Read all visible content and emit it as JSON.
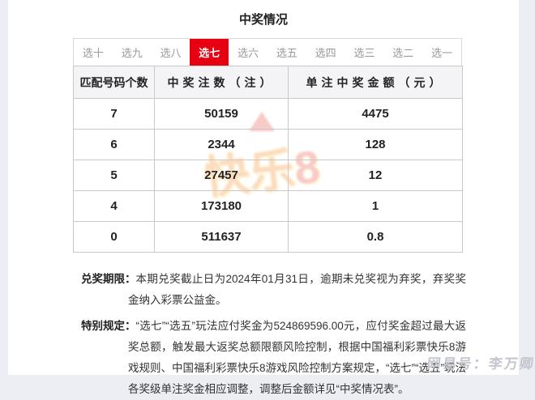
{
  "page": {
    "title": "中奖情况"
  },
  "tabs": [
    {
      "label": "选十",
      "active": false
    },
    {
      "label": "选九",
      "active": false
    },
    {
      "label": "选八",
      "active": false
    },
    {
      "label": "选七",
      "active": true
    },
    {
      "label": "选六",
      "active": false
    },
    {
      "label": "选五",
      "active": false
    },
    {
      "label": "选四",
      "active": false
    },
    {
      "label": "选三",
      "active": false
    },
    {
      "label": "选二",
      "active": false
    },
    {
      "label": "选一",
      "active": false
    }
  ],
  "table": {
    "headers": [
      "匹配号码个数",
      "中奖注数（注）",
      "单注中奖金额（元）"
    ],
    "rows": [
      [
        "7",
        "50159",
        "4475"
      ],
      [
        "6",
        "2344",
        "128"
      ],
      [
        "5",
        "27457",
        "12"
      ],
      [
        "4",
        "173180",
        "1"
      ],
      [
        "0",
        "511637",
        "0.8"
      ]
    ]
  },
  "notes": {
    "deadline_label": "兑奖期限：",
    "deadline_text": "本期兑奖截止日为2024年01月31日，逾期未兑奖视为弃奖，弃奖奖金纳入彩票公益金。",
    "special_label": "特别规定：",
    "special_text": "“选七”“选五”玩法应付奖金为524869596.00元，应付奖金超过最大返奖总额，触发最大返奖总额限额风险控制，根据中国福利彩票快乐8游戏规则、中国福利彩票快乐8游戏风险控制方案规定，“选七”“选五”玩法各奖级单注奖金相应调整，调整后金额详见“中奖情况表”。"
  },
  "watermarks": {
    "logo_text_main": "快乐",
    "logo_text_eight": "8",
    "signature": "网易号：李万卿"
  },
  "colors": {
    "accent_red": "#e60012",
    "header_bg": "#f4f4f7",
    "border": "#c9c9c9",
    "tab_text": "#999999",
    "body_text": "#333333"
  }
}
